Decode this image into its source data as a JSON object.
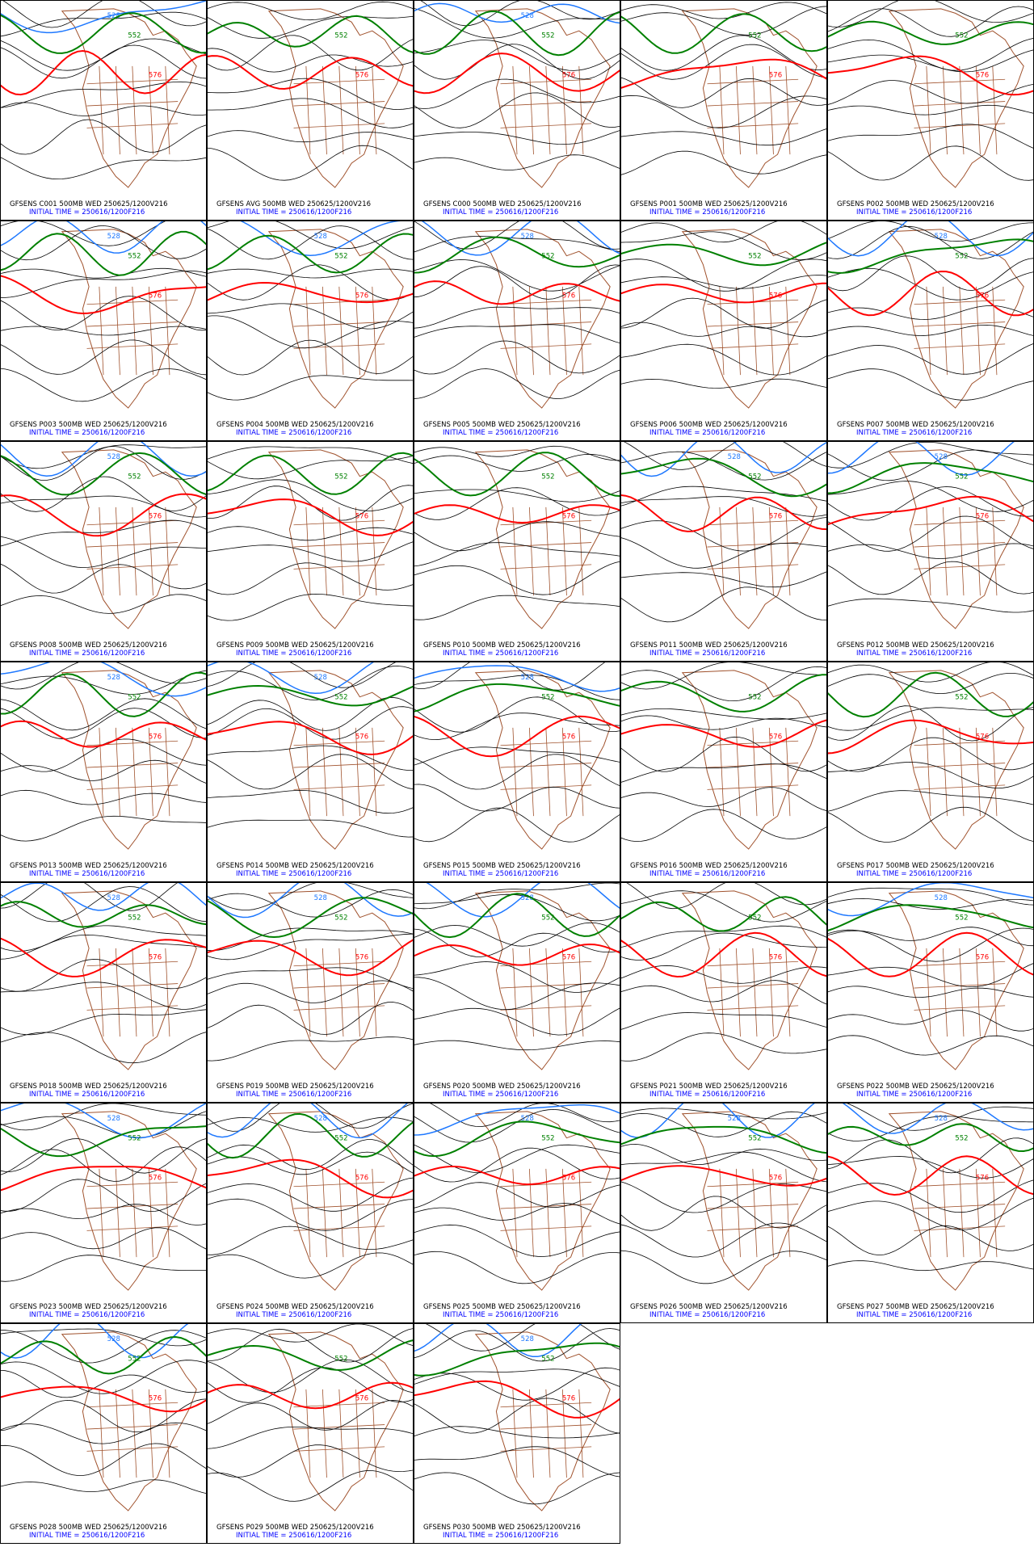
{
  "panels": [
    {
      "line1": "GFSENS C001 500MB WED 250625/1200V216",
      "line2": "INITIAL TIME = 250616/1200F216",
      "contours": [
        {
          "label": "528",
          "color": "#1e78ff"
        },
        {
          "label": "552",
          "color": "#008000"
        },
        {
          "label": "576",
          "color": "#ff0000"
        }
      ]
    },
    {
      "line1": "GFSENS AVG 500MB WED 250625/1200V216",
      "line2": "INITIAL TIME = 250616/1200F216",
      "contours": [
        {
          "label": "552",
          "color": "#008000"
        },
        {
          "label": "576",
          "color": "#ff0000"
        }
      ]
    },
    {
      "line1": "GFSENS C000 500MB WED 250625/1200V216",
      "line2": "INITIAL TIME = 250616/1200F216",
      "contours": [
        {
          "label": "528",
          "color": "#1e78ff"
        },
        {
          "label": "552",
          "color": "#008000"
        },
        {
          "label": "576",
          "color": "#ff0000"
        }
      ]
    },
    {
      "line1": "GFSENS P001 500MB WED 250625/1200V216",
      "line2": "INITIAL TIME = 250616/1200F216",
      "contours": [
        {
          "label": "552",
          "color": "#008000"
        },
        {
          "label": "576",
          "color": "#ff0000"
        }
      ]
    },
    {
      "line1": "GFSENS P002 500MB WED 250625/1200V216",
      "line2": "INITIAL TIME = 250616/1200F216",
      "contours": [
        {
          "label": "552",
          "color": "#008000"
        },
        {
          "label": "576",
          "color": "#ff0000"
        }
      ]
    },
    {
      "line1": "GFSENS P003 500MB WED 250625/1200V216",
      "line2": "INITIAL TIME = 250616/1200F216",
      "contours": [
        {
          "label": "528",
          "color": "#1e78ff"
        },
        {
          "label": "552",
          "color": "#008000"
        },
        {
          "label": "576",
          "color": "#ff0000"
        }
      ]
    },
    {
      "line1": "GFSENS P004 500MB WED 250625/1200V216",
      "line2": "INITIAL TIME = 250616/1200F216",
      "contours": [
        {
          "label": "528",
          "color": "#1e78ff"
        },
        {
          "label": "552",
          "color": "#008000"
        },
        {
          "label": "576",
          "color": "#ff0000"
        }
      ]
    },
    {
      "line1": "GFSENS P005 500MB WED 250625/1200V216",
      "line2": "INITIAL TIME = 250616/1200F216",
      "contours": [
        {
          "label": "528",
          "color": "#1e78ff"
        },
        {
          "label": "552",
          "color": "#008000"
        },
        {
          "label": "576",
          "color": "#ff0000"
        }
      ]
    },
    {
      "line1": "GFSENS P006 500MB WED 250625/1200V216",
      "line2": "INITIAL TIME = 250616/1200F216",
      "contours": [
        {
          "label": "552",
          "color": "#008000"
        },
        {
          "label": "576",
          "color": "#ff0000"
        }
      ]
    },
    {
      "line1": "GFSENS P007 500MB WED 250625/1200V216",
      "line2": "INITIAL TIME = 250616/1200F216",
      "contours": [
        {
          "label": "528",
          "color": "#1e78ff"
        },
        {
          "label": "552",
          "color": "#008000"
        },
        {
          "label": "576",
          "color": "#ff0000"
        }
      ]
    },
    {
      "line1": "GFSENS P008 500MB WED 250625/1200V216",
      "line2": "INITIAL TIME = 250616/1200F216",
      "contours": [
        {
          "label": "528",
          "color": "#1e78ff"
        },
        {
          "label": "552",
          "color": "#008000"
        },
        {
          "label": "576",
          "color": "#ff0000"
        }
      ]
    },
    {
      "line1": "GFSENS P009 500MB WED 250625/1200V216",
      "line2": "INITIAL TIME = 250616/1200F216",
      "contours": [
        {
          "label": "552",
          "color": "#008000"
        },
        {
          "label": "576",
          "color": "#ff0000"
        }
      ]
    },
    {
      "line1": "GFSENS P010 500MB WED 250625/1200V216",
      "line2": "INITIAL TIME = 250616/1200F216",
      "contours": [
        {
          "label": "552",
          "color": "#008000"
        },
        {
          "label": "576",
          "color": "#ff0000"
        }
      ]
    },
    {
      "line1": "GFSENS P011 500MB WED 250625/1200V216",
      "line2": "INITIAL TIME = 250616/1200F216",
      "contours": [
        {
          "label": "528",
          "color": "#1e78ff"
        },
        {
          "label": "552",
          "color": "#008000"
        },
        {
          "label": "576",
          "color": "#ff0000"
        }
      ]
    },
    {
      "line1": "GFSENS P012 500MB WED 250625/1200V216",
      "line2": "INITIAL TIME = 250616/1200F216",
      "contours": [
        {
          "label": "528",
          "color": "#1e78ff"
        },
        {
          "label": "552",
          "color": "#008000"
        },
        {
          "label": "576",
          "color": "#ff0000"
        }
      ]
    },
    {
      "line1": "GFSENS P013 500MB WED 250625/1200V216",
      "line2": "INITIAL TIME = 250616/1200F216",
      "contours": [
        {
          "label": "528",
          "color": "#1e78ff"
        },
        {
          "label": "552",
          "color": "#008000"
        },
        {
          "label": "576",
          "color": "#ff0000"
        }
      ]
    },
    {
      "line1": "GFSENS P014 500MB WED 250625/1200V216",
      "line2": "INITIAL TIME = 250616/1200F216",
      "contours": [
        {
          "label": "528",
          "color": "#1e78ff"
        },
        {
          "label": "552",
          "color": "#008000"
        },
        {
          "label": "576",
          "color": "#ff0000"
        }
      ]
    },
    {
      "line1": "GFSENS P015 500MB WED 250625/1200V216",
      "line2": "INITIAL TIME = 250616/1200F216",
      "contours": [
        {
          "label": "528",
          "color": "#1e78ff"
        },
        {
          "label": "552",
          "color": "#008000"
        },
        {
          "label": "576",
          "color": "#ff0000"
        }
      ]
    },
    {
      "line1": "GFSENS P016 500MB WED 250625/1200V216",
      "line2": "INITIAL TIME = 250616/1200F216",
      "contours": [
        {
          "label": "552",
          "color": "#008000"
        },
        {
          "label": "576",
          "color": "#ff0000"
        }
      ]
    },
    {
      "line1": "GFSENS P017 500MB WED 250625/1200V216",
      "line2": "INITIAL TIME = 250616/1200F216",
      "contours": [
        {
          "label": "552",
          "color": "#008000"
        },
        {
          "label": "576",
          "color": "#ff0000"
        }
      ]
    },
    {
      "line1": "GFSENS P018 500MB WED 250625/1200V216",
      "line2": "INITIAL TIME = 250616/1200F216",
      "contours": [
        {
          "label": "528",
          "color": "#1e78ff"
        },
        {
          "label": "552",
          "color": "#008000"
        },
        {
          "label": "576",
          "color": "#ff0000"
        }
      ]
    },
    {
      "line1": "GFSENS P019 500MB WED 250625/1200V216",
      "line2": "INITIAL TIME = 250616/1200F216",
      "contours": [
        {
          "label": "528",
          "color": "#1e78ff"
        },
        {
          "label": "552",
          "color": "#008000"
        },
        {
          "label": "576",
          "color": "#ff0000"
        }
      ]
    },
    {
      "line1": "GFSENS P020 500MB WED 250625/1200V216",
      "line2": "INITIAL TIME = 250616/1200F216",
      "contours": [
        {
          "label": "528",
          "color": "#1e78ff"
        },
        {
          "label": "552",
          "color": "#008000"
        },
        {
          "label": "576",
          "color": "#ff0000"
        }
      ]
    },
    {
      "line1": "GFSENS P021 500MB WED 250625/1200V216",
      "line2": "INITIAL TIME = 250616/1200F216",
      "contours": [
        {
          "label": "552",
          "color": "#008000"
        },
        {
          "label": "576",
          "color": "#ff0000"
        }
      ]
    },
    {
      "line1": "GFSENS P022 500MB WED 250625/1200V216",
      "line2": "INITIAL TIME = 250616/1200F216",
      "contours": [
        {
          "label": "528",
          "color": "#1e78ff"
        },
        {
          "label": "552",
          "color": "#008000"
        },
        {
          "label": "576",
          "color": "#ff0000"
        }
      ]
    },
    {
      "line1": "GFSENS P023 500MB WED 250625/1200V216",
      "line2": "INITIAL TIME = 250616/1200F216",
      "contours": [
        {
          "label": "528",
          "color": "#1e78ff"
        },
        {
          "label": "552",
          "color": "#008000"
        },
        {
          "label": "576",
          "color": "#ff0000"
        }
      ]
    },
    {
      "line1": "GFSENS P024 500MB WED 250625/1200V216",
      "line2": "INITIAL TIME = 250616/1200F216",
      "contours": [
        {
          "label": "528",
          "color": "#1e78ff"
        },
        {
          "label": "552",
          "color": "#008000"
        },
        {
          "label": "576",
          "color": "#ff0000"
        }
      ]
    },
    {
      "line1": "GFSENS P025 500MB WED 250625/1200V216",
      "line2": "INITIAL TIME = 250616/1200F216",
      "contours": [
        {
          "label": "528",
          "color": "#1e78ff"
        },
        {
          "label": "552",
          "color": "#008000"
        },
        {
          "label": "576",
          "color": "#ff0000"
        }
      ]
    },
    {
      "line1": "GFSENS P026 500MB WED 250625/1200V216",
      "line2": "INITIAL TIME = 250616/1200F216",
      "contours": [
        {
          "label": "528",
          "color": "#1e78ff"
        },
        {
          "label": "552",
          "color": "#008000"
        },
        {
          "label": "576",
          "color": "#ff0000"
        }
      ]
    },
    {
      "line1": "GFSENS P027 500MB WED 250625/1200V216",
      "line2": "INITIAL TIME = 250616/1200F216",
      "contours": [
        {
          "label": "528",
          "color": "#1e78ff"
        },
        {
          "label": "552",
          "color": "#008000"
        },
        {
          "label": "576",
          "color": "#ff0000"
        }
      ]
    },
    {
      "line1": "GFSENS P028 500MB WED 250625/1200V216",
      "line2": "INITIAL TIME = 250616/1200F216",
      "contours": [
        {
          "label": "528",
          "color": "#1e78ff"
        },
        {
          "label": "552",
          "color": "#008000"
        },
        {
          "label": "576",
          "color": "#ff0000"
        }
      ]
    },
    {
      "line1": "GFSENS P029 500MB WED 250625/1200V216",
      "line2": "INITIAL TIME = 250616/1200F216",
      "contours": [
        {
          "label": "552",
          "color": "#008000"
        },
        {
          "label": "576",
          "color": "#ff0000"
        }
      ]
    },
    {
      "line1": "GFSENS P030 500MB WED 250625/1200V216",
      "line2": "INITIAL TIME = 250616/1200F216",
      "contours": [
        {
          "label": "528",
          "color": "#1e78ff"
        },
        {
          "label": "552",
          "color": "#008000"
        },
        {
          "label": "576",
          "color": "#ff0000"
        }
      ]
    }
  ]
}
